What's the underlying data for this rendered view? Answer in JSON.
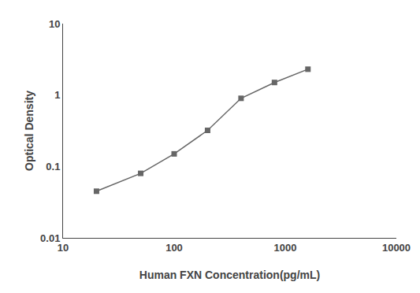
{
  "chart_data": {
    "type": "line",
    "x": [
      20,
      50,
      100,
      200,
      400,
      800,
      1600
    ],
    "values": [
      0.045,
      0.08,
      0.15,
      0.32,
      0.9,
      1.5,
      2.3
    ],
    "xlabel": "Human FXN Concentration(pg/mL)",
    "ylabel": "Optical Density",
    "xlim": [
      10,
      10000
    ],
    "ylim": [
      0.01,
      10
    ],
    "xticks": [
      10,
      100,
      1000,
      10000
    ],
    "yticks": [
      0.01,
      0.1,
      1,
      10
    ],
    "log": true,
    "grid": false,
    "color": "#666666",
    "marker": "square"
  }
}
